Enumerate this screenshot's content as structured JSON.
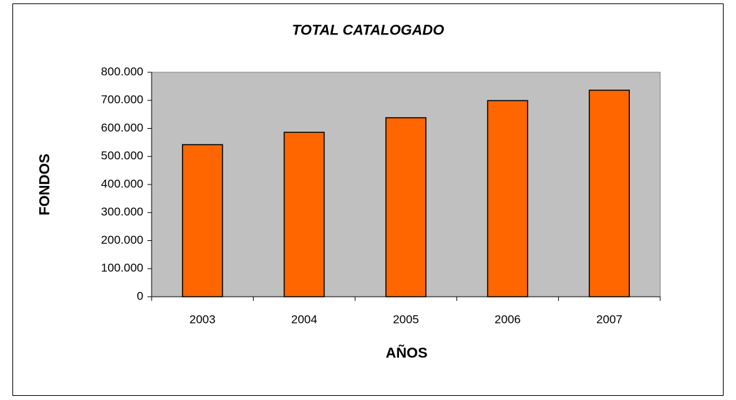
{
  "chart_data": {
    "type": "bar",
    "title": "TOTAL CATALOGADO",
    "x_label": "AÑOS",
    "y_label": "FONDOS",
    "categories": [
      "2003",
      "2004",
      "2005",
      "2006",
      "2007"
    ],
    "values": [
      542000,
      586000,
      638000,
      699000,
      736000
    ],
    "color": "#ff6600",
    "ylim": [
      0,
      800000
    ],
    "yticks": [
      0,
      {
        "value": 100000,
        "label": "100.000"
      },
      {
        "value": 200000,
        "label": "200.000"
      },
      {
        "value": 300000,
        "label": "300.000"
      },
      {
        "value": 400000,
        "label": "400.000"
      },
      {
        "value": 500000,
        "label": "500.000"
      },
      {
        "value": 600000,
        "label": "600.000"
      },
      {
        "value": 700000,
        "label": "700.000"
      },
      {
        "value": 800000,
        "label": "800.000"
      }
    ],
    "grid": false
  }
}
